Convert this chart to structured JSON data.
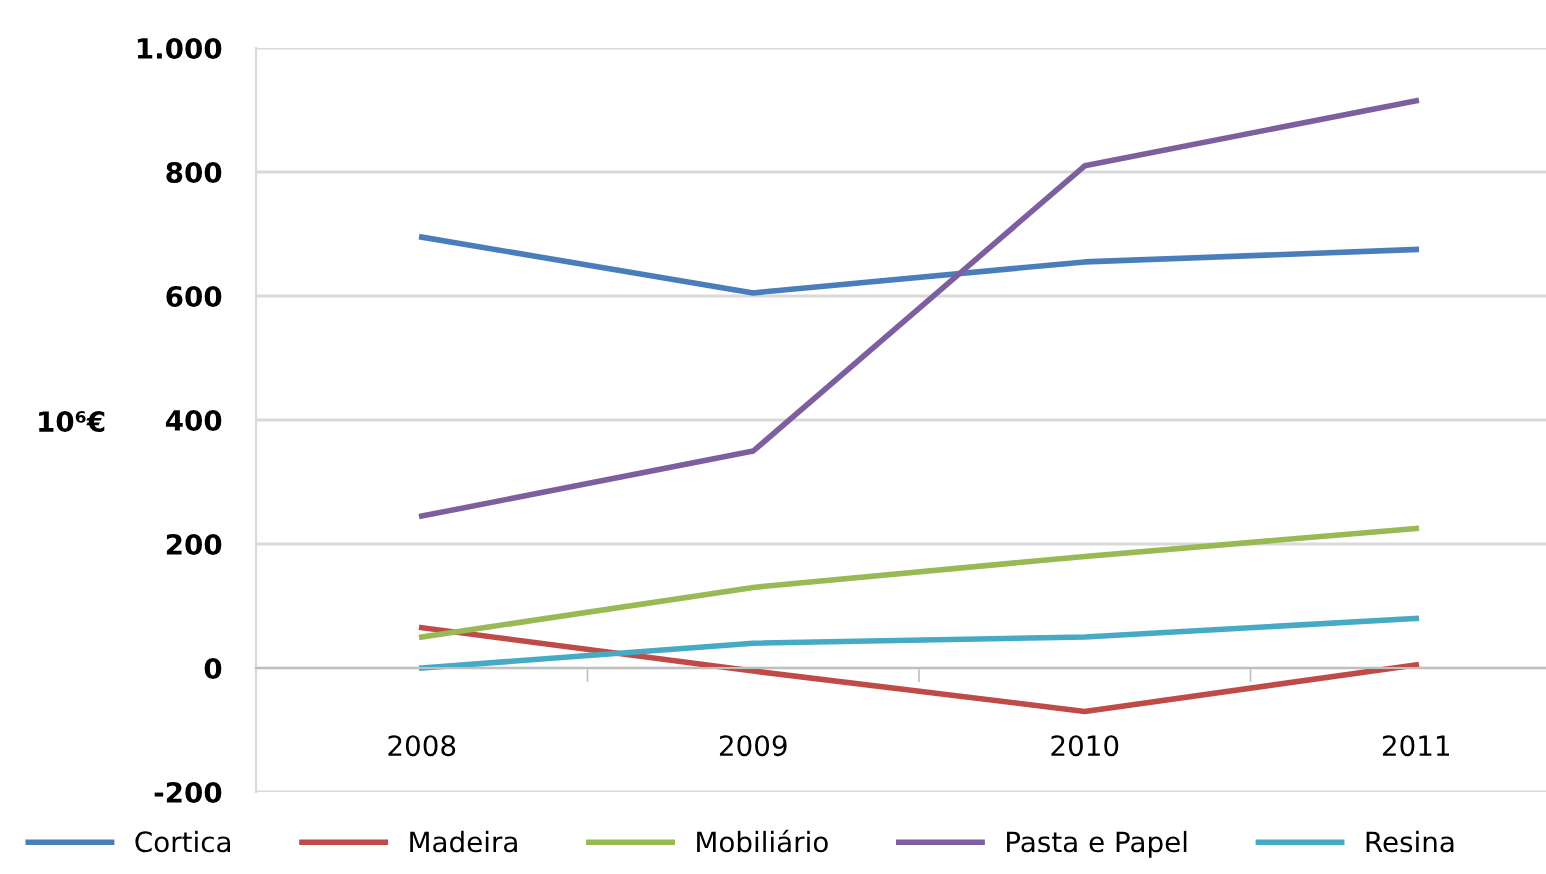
{
  "chart_data": {
    "type": "line",
    "ylabel": "10⁶€",
    "categories": [
      "2008",
      "2009",
      "2010",
      "2011"
    ],
    "series": [
      {
        "name": "Cortica",
        "color": "#4a7ebb",
        "values": [
          695,
          605,
          655,
          675
        ]
      },
      {
        "name": "Madeira",
        "color": "#be4b48",
        "values": [
          65,
          -5,
          -70,
          5
        ]
      },
      {
        "name": "Mobiliário",
        "color": "#98b954",
        "values": [
          50,
          130,
          180,
          225
        ]
      },
      {
        "name": "Pasta e Papel",
        "color": "#7d5fa0",
        "values": [
          245,
          350,
          810,
          915
        ]
      },
      {
        "name": "Resina",
        "color": "#46aac5",
        "values": [
          0,
          40,
          50,
          80
        ]
      }
    ],
    "ylim": [
      -200,
      1000
    ],
    "yticks": [
      -200,
      0,
      200,
      400,
      600,
      800,
      {
        "value": 1000,
        "label": "1.000"
      }
    ],
    "grid": "y",
    "legend": "bottom",
    "marker": "none",
    "line_style": "solid"
  }
}
